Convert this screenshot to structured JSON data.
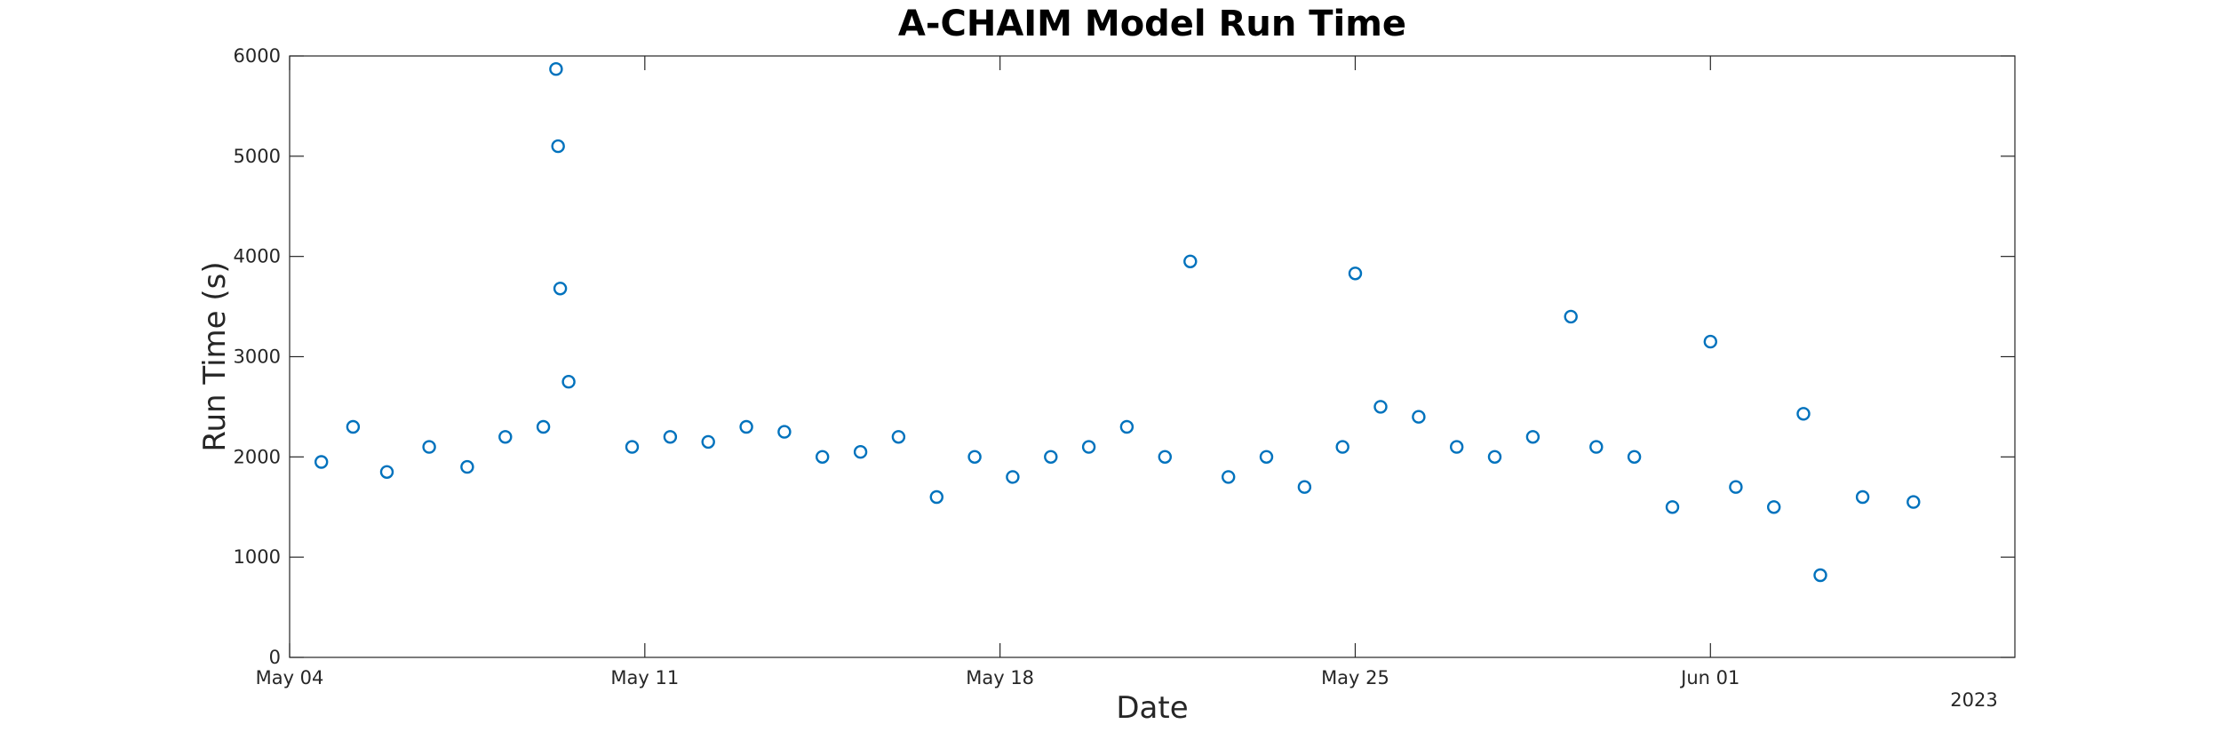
{
  "chart_data": {
    "type": "scatter",
    "title": "A-CHAIM Model Run Time",
    "xlabel": "Date",
    "ylabel": "Run Time (s)",
    "x_year_label": "2023",
    "xlim": [
      "2023-05-04",
      "2023-06-07"
    ],
    "ylim": [
      0,
      6000
    ],
    "grid": false,
    "marker": "open-circle",
    "color": "#0072bd",
    "x_ticks": [
      {
        "date": "2023-05-04",
        "label": "May 04"
      },
      {
        "date": "2023-05-11",
        "label": "May 11"
      },
      {
        "date": "2023-05-18",
        "label": "May 18"
      },
      {
        "date": "2023-05-25",
        "label": "May 25"
      },
      {
        "date": "2023-06-01",
        "label": "Jun 01"
      }
    ],
    "y_ticks": [
      0,
      1000,
      2000,
      3000,
      4000,
      5000,
      6000
    ],
    "series": [
      {
        "points": [
          [
            "2023-05-04T15:00",
            1950
          ],
          [
            "2023-05-05T06:00",
            2300
          ],
          [
            "2023-05-05T22:00",
            1850
          ],
          [
            "2023-05-06T18:00",
            2100
          ],
          [
            "2023-05-07T12:00",
            1900
          ],
          [
            "2023-05-08T06:00",
            2200
          ],
          [
            "2023-05-09T00:00",
            2300
          ],
          [
            "2023-05-09T06:00",
            5870
          ],
          [
            "2023-05-09T07:00",
            5100
          ],
          [
            "2023-05-09T08:00",
            3680
          ],
          [
            "2023-05-09T12:00",
            2750
          ],
          [
            "2023-05-10T18:00",
            2100
          ],
          [
            "2023-05-11T12:00",
            2200
          ],
          [
            "2023-05-12T06:00",
            2150
          ],
          [
            "2023-05-13T00:00",
            2300
          ],
          [
            "2023-05-13T18:00",
            2250
          ],
          [
            "2023-05-14T12:00",
            2000
          ],
          [
            "2023-05-15T06:00",
            2050
          ],
          [
            "2023-05-16T00:00",
            2200
          ],
          [
            "2023-05-16T18:00",
            1600
          ],
          [
            "2023-05-17T12:00",
            2000
          ],
          [
            "2023-05-18T06:00",
            1800
          ],
          [
            "2023-05-19T00:00",
            2000
          ],
          [
            "2023-05-19T18:00",
            2100
          ],
          [
            "2023-05-20T12:00",
            2300
          ],
          [
            "2023-05-21T06:00",
            2000
          ],
          [
            "2023-05-21T18:00",
            3950
          ],
          [
            "2023-05-22T12:00",
            1800
          ],
          [
            "2023-05-23T06:00",
            2000
          ],
          [
            "2023-05-24T00:00",
            1700
          ],
          [
            "2023-05-24T18:00",
            2100
          ],
          [
            "2023-05-25T00:00",
            3830
          ],
          [
            "2023-05-25T12:00",
            2500
          ],
          [
            "2023-05-26T06:00",
            2400
          ],
          [
            "2023-05-27T00:00",
            2100
          ],
          [
            "2023-05-27T18:00",
            2000
          ],
          [
            "2023-05-28T12:00",
            2200
          ],
          [
            "2023-05-29T06:00",
            3400
          ],
          [
            "2023-05-29T18:00",
            2100
          ],
          [
            "2023-05-30T12:00",
            2000
          ],
          [
            "2023-05-31T06:00",
            1500
          ],
          [
            "2023-06-01T00:00",
            3150
          ],
          [
            "2023-06-01T12:00",
            1700
          ],
          [
            "2023-06-02T06:00",
            1500
          ],
          [
            "2023-06-02T20:00",
            2430
          ],
          [
            "2023-06-03T04:00",
            820
          ],
          [
            "2023-06-04T00:00",
            1600
          ],
          [
            "2023-06-05T00:00",
            1550
          ]
        ]
      }
    ]
  }
}
